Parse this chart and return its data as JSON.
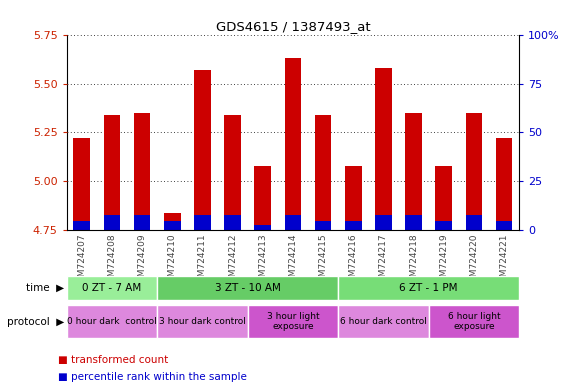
{
  "title": "GDS4615 / 1387493_at",
  "samples": [
    "GSM724207",
    "GSM724208",
    "GSM724209",
    "GSM724210",
    "GSM724211",
    "GSM724212",
    "GSM724213",
    "GSM724214",
    "GSM724215",
    "GSM724216",
    "GSM724217",
    "GSM724218",
    "GSM724219",
    "GSM724220",
    "GSM724221"
  ],
  "transformed_count": [
    5.22,
    5.34,
    5.35,
    4.84,
    5.57,
    5.34,
    5.08,
    5.63,
    5.34,
    5.08,
    5.58,
    5.35,
    5.08,
    5.35,
    5.22
  ],
  "percentile_rank": [
    5,
    8,
    8,
    5,
    8,
    8,
    3,
    8,
    5,
    5,
    8,
    8,
    5,
    8,
    5
  ],
  "ylim_left": [
    4.75,
    5.75
  ],
  "ylim_right": [
    0,
    100
  ],
  "yticks_left": [
    4.75,
    5.0,
    5.25,
    5.5,
    5.75
  ],
  "yticks_right": [
    0,
    25,
    50,
    75,
    100
  ],
  "bar_color_red": "#cc0000",
  "bar_color_blue": "#0000cc",
  "bar_width": 0.55,
  "bg_chart": "#ffffff",
  "time_groups": [
    {
      "label": "0 ZT - 7 AM",
      "start": 0,
      "end": 2,
      "color": "#99ee99"
    },
    {
      "label": "3 ZT - 10 AM",
      "start": 3,
      "end": 8,
      "color": "#66cc66"
    },
    {
      "label": "6 ZT - 1 PM",
      "start": 9,
      "end": 14,
      "color": "#77dd77"
    }
  ],
  "protocol_groups": [
    {
      "label": "0 hour dark  control",
      "start": 0,
      "end": 2,
      "color": "#dd88dd"
    },
    {
      "label": "3 hour dark control",
      "start": 3,
      "end": 5,
      "color": "#dd88dd"
    },
    {
      "label": "3 hour light\nexposure",
      "start": 6,
      "end": 8,
      "color": "#cc55cc"
    },
    {
      "label": "6 hour dark control",
      "start": 9,
      "end": 11,
      "color": "#dd88dd"
    },
    {
      "label": "6 hour light\nexposure",
      "start": 12,
      "end": 14,
      "color": "#cc55cc"
    }
  ],
  "left_axis_color": "#cc2200",
  "right_axis_color": "#0000cc",
  "tick_label_color": "#444444"
}
